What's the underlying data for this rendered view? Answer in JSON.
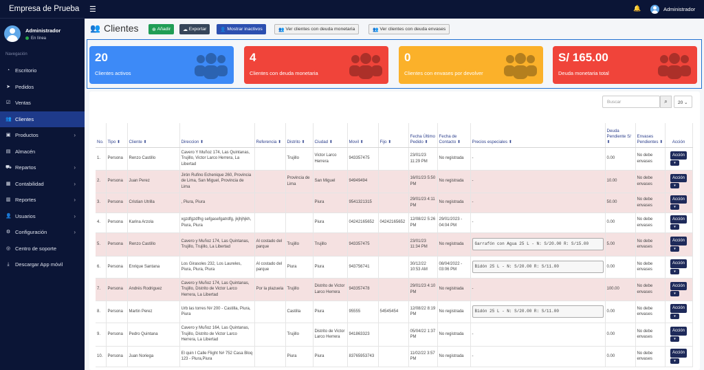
{
  "app": {
    "brand": "Empresa de Prueba",
    "user_name": "Administrador",
    "user_status": "En línea",
    "top_user": "Administrador"
  },
  "nav": {
    "heading": "Navegación",
    "items": [
      {
        "label": "Escritorio",
        "icon": "dashboard-icon"
      },
      {
        "label": "Pedidos",
        "icon": "paper-plane-icon"
      },
      {
        "label": "Ventas",
        "icon": "check-square-icon"
      },
      {
        "label": "Clientes",
        "icon": "users-icon",
        "active": true
      },
      {
        "label": "Productos",
        "icon": "box-icon",
        "chev": true
      },
      {
        "label": "Almacén",
        "icon": "warehouse-icon"
      },
      {
        "label": "Repartos",
        "icon": "truck-icon",
        "chev": true
      },
      {
        "label": "Contabilidad",
        "icon": "calculator-icon",
        "chev": true
      },
      {
        "label": "Reportes",
        "icon": "chart-icon",
        "chev": true
      },
      {
        "label": "Usuarios",
        "icon": "user-icon",
        "chev": true
      },
      {
        "label": "Configuración",
        "icon": "gear-icon",
        "chev": true
      },
      {
        "label": "Centro de soporte",
        "icon": "lifebuoy-icon"
      },
      {
        "label": "Descargar App móvil",
        "icon": "download-icon"
      }
    ]
  },
  "page": {
    "title": "Clientes"
  },
  "toolbar": {
    "add": "Añadir",
    "export": "Exportar",
    "inactive": "Mostrar inactivos",
    "debt_money": "Ver clientes con deuda monetaria",
    "debt_env": "Ver clientes con deuda envases"
  },
  "stats": [
    {
      "value": "20",
      "label": "Clientes activos",
      "color": "#3d8af7"
    },
    {
      "value": "4",
      "label": "Clientes con deuda monetaria",
      "color": "#f0443a"
    },
    {
      "value": "0",
      "label": "Clientes con envases por devolver",
      "color": "#fbb12a"
    },
    {
      "value": "S/ 165.00",
      "label": "Deuda monetaria total",
      "color": "#f0443a"
    }
  ],
  "search": {
    "placeholder": "Buscar",
    "page_size": "20"
  },
  "table": {
    "headers": [
      "No.",
      "Tipo",
      "Cliente",
      "Direccion",
      "Referencia",
      "Distrito",
      "Ciudad",
      "Movil",
      "Fijo",
      "Fecha Último Pedido",
      "Fecha de Contacto",
      "Precios especiales",
      "Deuda Pendiente S/",
      "Envases Pendientes",
      "Acción"
    ],
    "action_label": "Acción",
    "rows": [
      {
        "no": "1.",
        "tipo": "Persona",
        "cliente": "Renzo Castillo",
        "dir": "Cavero Y Muñoz 174, Las Quintanas, Trujillo, Victor Larco Herrera, La Libertad",
        "ref": "",
        "dist": "Trujillo",
        "ciudad": "Victor Larco Herrera",
        "movil": "943357475",
        "fijo": "",
        "fup": "23/01/23 11:29 PM",
        "fc": "No registrada",
        "precios": "-",
        "box": false,
        "deuda": "0.00",
        "env": "No debe envases",
        "pink": false
      },
      {
        "no": "2.",
        "tipo": "Persona",
        "cliente": "Juan Perez",
        "dir": "Jirón Rufino Echenique 260, Provincia de Lima, San Miguel, Provincia de Lima",
        "ref": "",
        "dist": "Provincia de Lima",
        "ciudad": "San Miguel",
        "movil": "94949494",
        "fijo": "",
        "fup": "16/01/23 5:50 PM",
        "fc": "No registrada",
        "precios": "-",
        "box": false,
        "deuda": "10.00",
        "env": "No debe envases",
        "pink": true
      },
      {
        "no": "3.",
        "tipo": "Persona",
        "cliente": "Cristian Utrilla",
        "dir": ", Piura, Piura",
        "ref": "",
        "dist": "",
        "ciudad": "Piura",
        "movil": "9541321315",
        "fijo": "",
        "fup": "29/01/23 4:11 PM",
        "fc": "No registrada",
        "precios": "-",
        "box": false,
        "deuda": "50.00",
        "env": "No debe envases",
        "pink": true
      },
      {
        "no": "4.",
        "tipo": "Persona",
        "cliente": "Karina Arzola",
        "dir": "xgzdfgzdfhg sefgasefgatrdfg, jkjhjhjkh, Piura, Piura",
        "ref": "",
        "dist": "",
        "ciudad": "Piura",
        "movil": "04242165652",
        "fijo": "04242165652",
        "fup": "12/08/22 5:26 PM",
        "fc": "29/01/2023 - 04:04 PM",
        "precios": "-",
        "box": false,
        "deuda": "0.00",
        "env": "No debe envases",
        "pink": false
      },
      {
        "no": "5.",
        "tipo": "Persona",
        "cliente": "Renzo Castillo",
        "dir": "Cavero y Muñoz 174, Las Quintanas, Trujillo, Trujillo, La Libertad",
        "ref": "Al costado del parque",
        "dist": "Trujillo",
        "ciudad": "Trujillo",
        "movil": "943357475",
        "fijo": "",
        "fup": "23/01/23 11:34 PM",
        "fc": "No registrada",
        "precios": "Garrafón con Agua 25 L -  N: S/20.00 R: S/15.00",
        "box": true,
        "deuda": "5.00",
        "env": "No debe envases",
        "pink": true
      },
      {
        "no": "6.",
        "tipo": "Persona",
        "cliente": "Enrique Santana",
        "dir": "Los Girasoles 232, Los Laureles, Piura, Piura, Piura",
        "ref": "Al costado del parque",
        "dist": "Piura",
        "ciudad": "Piura",
        "movil": "943756741",
        "fijo": "",
        "fup": "30/12/22 10:53 AM",
        "fc": "08/04/2022 - 03:06 PM",
        "precios": "Bidón 25 L -  N: S/20.00 R: S/11.00",
        "box": true,
        "deuda": "0.00",
        "env": "No debe envases",
        "pink": false
      },
      {
        "no": "7.",
        "tipo": "Persona",
        "cliente": "Andrés Rodriguez",
        "dir": "Cavero y Muñoz 174, Las Quintanas, Trujillo, Distrito de Victor Larco Herrera, La Libertad",
        "ref": "Por la plazuela",
        "dist": "Trujillo",
        "ciudad": "Distrito de Victor Larco Herrera",
        "movil": "943357478",
        "fijo": "",
        "fup": "29/01/23 4:10 PM",
        "fc": "No registrada",
        "precios": "-",
        "box": false,
        "deuda": "100.00",
        "env": "No debe envases",
        "pink": true
      },
      {
        "no": "8.",
        "tipo": "Persona",
        "cliente": "Martin Perez",
        "dir": "Urb las torres N# 200 - Castilla, Piura, Piura",
        "ref": "",
        "dist": "Castilla",
        "ciudad": "Piura",
        "movil": "95555",
        "fijo": "54545454",
        "fup": "12/08/22 8:19 PM",
        "fc": "No registrada",
        "precios": "Bidón 25 L -  N: S/20.00 R: S/11.00",
        "box": true,
        "deuda": "0.00",
        "env": "No debe envases",
        "pink": false
      },
      {
        "no": "9.",
        "tipo": "Persona",
        "cliente": "Pedro Quintana",
        "dir": "Cavero y Muñoz 164, Las Quintanas, Trujillo, Distrito de Victor Larco Herrera, La Libertad",
        "ref": "",
        "dist": "Trujillo",
        "ciudad": "Distrito de Victor Larco Herrera",
        "movil": "941863323",
        "fijo": "",
        "fup": "05/04/22 1:37 PM",
        "fc": "No registrada",
        "precios": "-",
        "box": false,
        "deuda": "0.00",
        "env": "No debe envases",
        "pink": false
      },
      {
        "no": "10.",
        "tipo": "Persona",
        "cliente": "Juan Noriega",
        "dir": "El quin I Calle Flight N# 752 Casa Bloq 123 - Piura,Piura",
        "ref": "",
        "dist": "Piura",
        "ciudad": "Piura",
        "movil": "83765953743",
        "fijo": "",
        "fup": "11/02/22 3:57 PM",
        "fc": "No registrada",
        "precios": "-",
        "box": false,
        "deuda": "0.00",
        "env": "No debe envases",
        "pink": false
      }
    ]
  }
}
